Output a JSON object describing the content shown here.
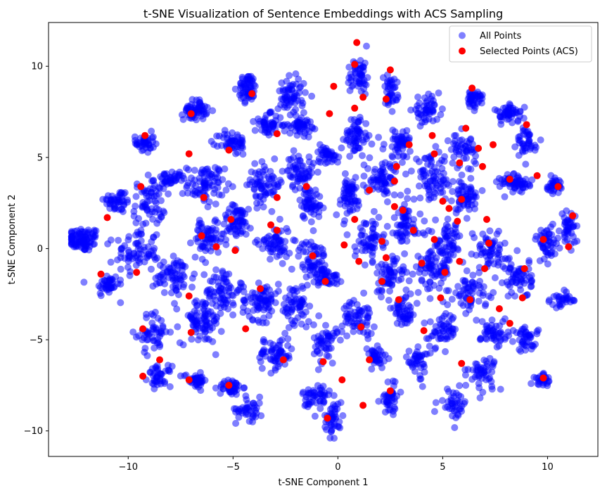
{
  "chart_data": {
    "type": "scatter",
    "title": "t-SNE Visualization of Sentence Embeddings with ACS Sampling",
    "xlabel": "t-SNE Component 1",
    "ylabel": "t-SNE Component 2",
    "xlim": [
      -13.8,
      12.4
    ],
    "ylim": [
      -11.4,
      12.4
    ],
    "xticks": [
      -10,
      -5,
      0,
      5,
      10
    ],
    "yticks": [
      -10,
      -5,
      0,
      5,
      10
    ],
    "xtick_labels": [
      "−10",
      "−5",
      "0",
      "5",
      "10"
    ],
    "ytick_labels": [
      "−10",
      "−5",
      "0",
      "5",
      "10"
    ],
    "grid": false,
    "legend_position": "top-right",
    "series": [
      {
        "name": "All Points",
        "color": "#0000ff",
        "alpha": 0.5,
        "clusters": [
          [
            -12.2,
            0.5,
            0.8,
            0.6,
            90
          ],
          [
            -11.0,
            -2.0,
            0.5,
            0.6,
            40
          ],
          [
            -10.5,
            2.6,
            0.6,
            0.6,
            45
          ],
          [
            -9.6,
            -0.2,
            0.9,
            1.2,
            70
          ],
          [
            -9.2,
            5.8,
            0.4,
            0.5,
            40
          ],
          [
            -8.8,
            -4.6,
            0.7,
            1.0,
            50
          ],
          [
            -9.0,
            2.5,
            0.7,
            1.1,
            60
          ],
          [
            -8.0,
            3.8,
            0.7,
            0.4,
            40
          ],
          [
            -8.5,
            -7.0,
            0.5,
            0.5,
            40
          ],
          [
            -7.8,
            -1.5,
            0.9,
            1.0,
            70
          ],
          [
            -6.8,
            7.6,
            0.5,
            0.5,
            60
          ],
          [
            -6.3,
            3.5,
            0.8,
            1.0,
            80
          ],
          [
            -6.5,
            -4.0,
            0.9,
            1.1,
            80
          ],
          [
            -6.2,
            0.5,
            0.7,
            0.8,
            60
          ],
          [
            -6.8,
            -7.2,
            0.5,
            0.4,
            40
          ],
          [
            -5.5,
            -2.3,
            0.7,
            1.2,
            70
          ],
          [
            -5.1,
            -7.6,
            0.5,
            0.4,
            40
          ],
          [
            -5.0,
            5.8,
            0.6,
            0.6,
            50
          ],
          [
            -4.8,
            1.5,
            0.7,
            0.8,
            60
          ],
          [
            -4.3,
            8.8,
            0.4,
            0.7,
            60
          ],
          [
            -4.2,
            -8.8,
            0.6,
            0.6,
            40
          ],
          [
            -3.7,
            -2.8,
            0.8,
            1.0,
            80
          ],
          [
            -3.5,
            3.5,
            0.8,
            1.0,
            70
          ],
          [
            -3.3,
            6.8,
            0.6,
            0.5,
            50
          ],
          [
            -3.0,
            -5.8,
            0.8,
            0.8,
            60
          ],
          [
            -3.0,
            0.3,
            0.7,
            0.9,
            60
          ],
          [
            -2.2,
            8.4,
            0.6,
            0.9,
            60
          ],
          [
            -2.0,
            -3.2,
            0.6,
            1.2,
            60
          ],
          [
            -1.8,
            4.2,
            0.6,
            0.9,
            60
          ],
          [
            -1.8,
            6.8,
            0.5,
            0.5,
            50
          ],
          [
            -1.2,
            -0.6,
            0.6,
            1.0,
            60
          ],
          [
            -1.3,
            2.5,
            0.5,
            0.8,
            50
          ],
          [
            -1.0,
            -8.2,
            0.6,
            0.9,
            50
          ],
          [
            -0.6,
            -5.2,
            0.5,
            1.0,
            50
          ],
          [
            -0.5,
            -1.6,
            0.5,
            0.5,
            40
          ],
          [
            -0.2,
            -9.3,
            0.4,
            0.8,
            40
          ],
          [
            -0.5,
            5.2,
            0.5,
            0.5,
            40
          ],
          [
            0.5,
            2.8,
            0.6,
            1.0,
            60
          ],
          [
            1.0,
            -3.8,
            0.7,
            0.8,
            60
          ],
          [
            0.9,
            6.2,
            0.5,
            1.0,
            60
          ],
          [
            1.0,
            9.5,
            0.5,
            1.0,
            50
          ],
          [
            1.5,
            0.5,
            0.6,
            1.0,
            60
          ],
          [
            1.8,
            -6.0,
            0.5,
            0.6,
            40
          ],
          [
            2.2,
            3.8,
            0.8,
            0.9,
            70
          ],
          [
            2.4,
            -1.5,
            0.7,
            1.0,
            60
          ],
          [
            2.5,
            -8.2,
            0.4,
            0.8,
            40
          ],
          [
            2.5,
            8.6,
            0.3,
            0.8,
            40
          ],
          [
            3.0,
            5.8,
            0.7,
            0.7,
            50
          ],
          [
            3.2,
            1.2,
            0.7,
            1.1,
            60
          ],
          [
            3.2,
            -3.4,
            0.6,
            0.8,
            50
          ],
          [
            3.8,
            -6.2,
            0.5,
            0.8,
            40
          ],
          [
            4.2,
            7.6,
            0.6,
            0.6,
            50
          ],
          [
            4.5,
            -1.2,
            0.8,
            1.0,
            70
          ],
          [
            4.5,
            3.8,
            0.8,
            1.1,
            70
          ],
          [
            5.0,
            -4.5,
            0.6,
            0.8,
            50
          ],
          [
            5.3,
            0.3,
            0.6,
            1.0,
            60
          ],
          [
            5.5,
            -8.5,
            0.6,
            0.7,
            40
          ],
          [
            6.0,
            2.8,
            0.7,
            0.8,
            60
          ],
          [
            6.3,
            -2.4,
            0.7,
            1.0,
            60
          ],
          [
            6.0,
            5.4,
            0.6,
            0.8,
            50
          ],
          [
            6.5,
            8.2,
            0.4,
            0.5,
            40
          ],
          [
            6.9,
            -6.8,
            0.6,
            0.8,
            50
          ],
          [
            7.2,
            0.0,
            0.8,
            0.9,
            60
          ],
          [
            7.5,
            -4.6,
            0.6,
            0.8,
            50
          ],
          [
            8.2,
            7.4,
            0.6,
            0.4,
            50
          ],
          [
            8.5,
            3.6,
            0.7,
            0.5,
            60
          ],
          [
            8.6,
            -1.6,
            0.6,
            1.0,
            60
          ],
          [
            9.0,
            5.8,
            0.4,
            0.8,
            40
          ],
          [
            9.0,
            -5.0,
            0.5,
            0.6,
            40
          ],
          [
            9.8,
            -7.2,
            0.4,
            0.3,
            30
          ],
          [
            10.0,
            0.3,
            0.5,
            0.9,
            50
          ],
          [
            10.3,
            3.4,
            0.4,
            0.4,
            30
          ],
          [
            10.7,
            -2.8,
            0.5,
            0.4,
            30
          ],
          [
            11.0,
            1.0,
            0.3,
            0.8,
            40
          ]
        ]
      },
      {
        "name": "Selected Points (ACS)",
        "color": "#ff0000",
        "points": [
          [
            0.9,
            11.3
          ],
          [
            0.8,
            10.1
          ],
          [
            2.5,
            9.8
          ],
          [
            -0.2,
            8.9
          ],
          [
            -4.1,
            8.5
          ],
          [
            6.4,
            8.8
          ],
          [
            1.2,
            8.3
          ],
          [
            2.3,
            8.2
          ],
          [
            -0.4,
            7.4
          ],
          [
            0.8,
            7.7
          ],
          [
            -7.0,
            7.4
          ],
          [
            -2.9,
            6.3
          ],
          [
            -9.2,
            6.2
          ],
          [
            4.5,
            6.2
          ],
          [
            6.1,
            6.6
          ],
          [
            9.0,
            6.8
          ],
          [
            -7.1,
            5.2
          ],
          [
            -5.2,
            5.4
          ],
          [
            3.4,
            5.7
          ],
          [
            4.6,
            5.2
          ],
          [
            6.7,
            5.5
          ],
          [
            7.4,
            5.7
          ],
          [
            2.8,
            4.5
          ],
          [
            5.8,
            4.7
          ],
          [
            6.9,
            4.5
          ],
          [
            9.5,
            4.0
          ],
          [
            8.2,
            3.8
          ],
          [
            -9.4,
            3.4
          ],
          [
            -1.5,
            3.4
          ],
          [
            2.7,
            3.7
          ],
          [
            1.5,
            3.2
          ],
          [
            10.5,
            3.4
          ],
          [
            -6.4,
            2.8
          ],
          [
            -2.9,
            2.8
          ],
          [
            5.0,
            2.6
          ],
          [
            5.9,
            2.7
          ],
          [
            -11.0,
            1.7
          ],
          [
            -5.1,
            1.6
          ],
          [
            2.7,
            2.3
          ],
          [
            3.1,
            2.1
          ],
          [
            5.3,
            2.2
          ],
          [
            11.2,
            1.8
          ],
          [
            0.8,
            1.6
          ],
          [
            5.7,
            1.5
          ],
          [
            7.1,
            1.6
          ],
          [
            -3.2,
            1.3
          ],
          [
            -2.9,
            1.0
          ],
          [
            3.6,
            1.0
          ],
          [
            -6.5,
            0.7
          ],
          [
            -5.8,
            0.1
          ],
          [
            -4.9,
            -0.1
          ],
          [
            0.3,
            0.2
          ],
          [
            2.1,
            0.4
          ],
          [
            4.6,
            0.5
          ],
          [
            7.2,
            0.3
          ],
          [
            9.8,
            0.5
          ],
          [
            11.0,
            0.1
          ],
          [
            -1.2,
            -0.4
          ],
          [
            1.0,
            -0.7
          ],
          [
            2.3,
            -0.5
          ],
          [
            4.0,
            -0.8
          ],
          [
            5.8,
            -0.7
          ],
          [
            7.0,
            -1.1
          ],
          [
            -11.3,
            -1.4
          ],
          [
            -9.6,
            -1.3
          ],
          [
            5.1,
            -1.3
          ],
          [
            8.9,
            -1.1
          ],
          [
            -0.6,
            -1.8
          ],
          [
            2.1,
            -1.8
          ],
          [
            -3.7,
            -2.2
          ],
          [
            -7.1,
            -2.6
          ],
          [
            2.9,
            -2.8
          ],
          [
            4.9,
            -2.7
          ],
          [
            6.3,
            -2.8
          ],
          [
            8.8,
            -2.7
          ],
          [
            7.7,
            -3.3
          ],
          [
            -9.3,
            -4.4
          ],
          [
            -7.0,
            -4.6
          ],
          [
            -4.4,
            -4.4
          ],
          [
            1.1,
            -4.3
          ],
          [
            4.1,
            -4.5
          ],
          [
            8.2,
            -4.1
          ],
          [
            -8.5,
            -6.1
          ],
          [
            -2.6,
            -6.1
          ],
          [
            -0.7,
            -6.2
          ],
          [
            1.5,
            -6.1
          ],
          [
            5.9,
            -6.3
          ],
          [
            -9.3,
            -7.0
          ],
          [
            -7.1,
            -7.2
          ],
          [
            -5.2,
            -7.5
          ],
          [
            0.2,
            -7.2
          ],
          [
            2.5,
            -7.8
          ],
          [
            9.8,
            -7.1
          ],
          [
            1.2,
            -8.6
          ],
          [
            -0.5,
            -9.3
          ]
        ]
      }
    ]
  }
}
